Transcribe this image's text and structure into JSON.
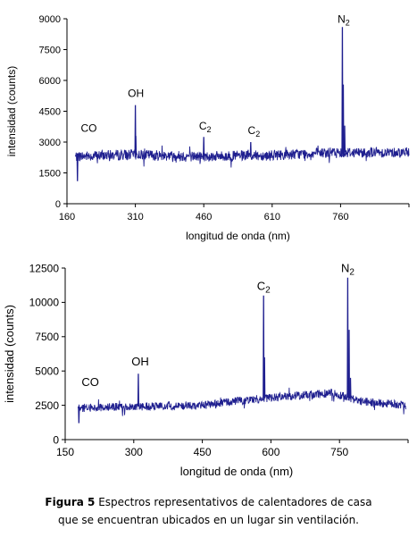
{
  "caption": {
    "label": "Figura 5",
    "line1": "Espectros representativos de calentadores de casa",
    "line2": "que se encuentran ubicados en un lugar sin ventilación."
  },
  "chart_data": [
    {
      "type": "line",
      "xlabel": "longitud de onda (nm)",
      "ylabel": "intensidad (counts)",
      "xlim": [
        160,
        910
      ],
      "ylim": [
        0,
        9000
      ],
      "xticks": [
        "160",
        "310",
        "460",
        "610",
        "760"
      ],
      "yticks": [
        "0",
        "1500",
        "3000",
        "4500",
        "6000",
        "7500",
        "9000"
      ],
      "grid": false,
      "color": "#1f1f8f",
      "baseline": [
        [
          178,
          2300
        ],
        [
          300,
          2400
        ],
        [
          450,
          2300
        ],
        [
          600,
          2350
        ],
        [
          700,
          2450
        ],
        [
          760,
          2500
        ],
        [
          780,
          2500
        ],
        [
          910,
          2500
        ]
      ],
      "noise": 250,
      "peaks": [
        {
          "x": 183,
          "y": 1100
        },
        {
          "x": 310,
          "y": 4800
        },
        {
          "x": 311,
          "y": 3300
        },
        {
          "x": 460,
          "y": 3250
        },
        {
          "x": 563,
          "y": 3000
        },
        {
          "x": 764,
          "y": 8600
        },
        {
          "x": 766,
          "y": 5800
        },
        {
          "x": 769,
          "y": 3800
        }
      ],
      "annotations": [
        {
          "text": "CO",
          "x": 208,
          "y": 3500
        },
        {
          "text": "OH",
          "x": 311,
          "y": 5200
        },
        {
          "text": "C",
          "sub": "2",
          "x": 463,
          "y": 3600
        },
        {
          "text": "C",
          "sub": "2",
          "x": 570,
          "y": 3400
        },
        {
          "text": "N",
          "sub": "2",
          "x": 767,
          "y": 8800
        }
      ]
    },
    {
      "type": "line",
      "xlabel": "longitud de onda (nm)",
      "ylabel": "intensidad (counts)",
      "xlim": [
        150,
        900
      ],
      "ylim": [
        0,
        12500
      ],
      "xticks": [
        "150",
        "300",
        "450",
        "600",
        "750"
      ],
      "yticks": [
        "0",
        "2500",
        "5000",
        "7500",
        "10000",
        "12500"
      ],
      "grid": false,
      "color": "#1f1f8f",
      "baseline": [
        [
          178,
          2300
        ],
        [
          300,
          2400
        ],
        [
          450,
          2500
        ],
        [
          550,
          2900
        ],
        [
          650,
          3200
        ],
        [
          740,
          3400
        ],
        [
          790,
          2800
        ],
        [
          895,
          2500
        ]
      ],
      "noise": 300,
      "peaks": [
        {
          "x": 180,
          "y": 1200
        },
        {
          "x": 310,
          "y": 4800
        },
        {
          "x": 584,
          "y": 10500
        },
        {
          "x": 586,
          "y": 6000
        },
        {
          "x": 768,
          "y": 11800
        },
        {
          "x": 771,
          "y": 8000
        },
        {
          "x": 774,
          "y": 4500
        }
      ],
      "annotations": [
        {
          "text": "CO",
          "x": 205,
          "y": 3900
        },
        {
          "text": "OH",
          "x": 314,
          "y": 5400
        },
        {
          "text": "C",
          "sub": "2",
          "x": 584,
          "y": 10900
        },
        {
          "text": "N",
          "sub": "2",
          "x": 768,
          "y": 12200
        }
      ]
    }
  ]
}
